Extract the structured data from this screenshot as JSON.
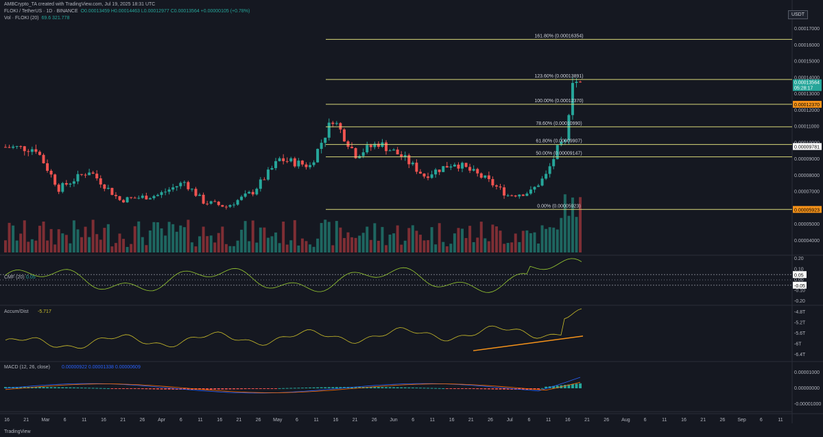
{
  "header": {
    "attribution": "AMBCrypto_TA created with TradingView.com, Jul 19, 2025 18:31 UTC",
    "symbol": "FLOKI / TetherUS · 1D · BINANCE",
    "ohlc": "O0.00013459 H0.00014463 L0.00012977 C0.00013564 +0.00000105 (+0.78%)",
    "volume": "Vol · FLOKI (20)",
    "volume_value": "69.6  321.778"
  },
  "currency_button": "USDT",
  "price_axis": [
    "0.00017000",
    "0.00016000",
    "0.00015000",
    "0.00014000",
    "0.00013000",
    "0.00012000",
    "0.00011000",
    "0.00010000",
    "0.00009000",
    "0.00008000",
    "0.00007000",
    "0.00006000",
    "0.00005000",
    "0.00004000"
  ],
  "current_price": "0.00013564",
  "countdown": "05:28:17",
  "price_tags": [
    {
      "text": "0.00012370",
      "color": "#f7931a"
    },
    {
      "text": "0.00009781",
      "color": "#ffffff"
    },
    {
      "text": "0.00005923",
      "color": "#f7931a"
    }
  ],
  "fib_levels": [
    {
      "label": "161.80% (0.00016354)",
      "price": 0.00016354
    },
    {
      "label": "123.60% (0.00013891)",
      "price": 0.00013891
    },
    {
      "label": "100.00% (0.00012370)",
      "price": 0.0001237
    },
    {
      "label": "78.60% (0.00010990)",
      "price": 0.0001099
    },
    {
      "label": "61.80% (0.00009907)",
      "price": 9.907e-05
    },
    {
      "label": "50.00% (0.00009147)",
      "price": 9.147e-05
    },
    {
      "label": "0.00% (0.00005923)",
      "price": 5.923e-05
    }
  ],
  "cmf": {
    "title": "CMF (20)",
    "value": "0.05",
    "axis": [
      "0.20",
      "0.10",
      "0.00",
      "-0.10",
      "-0.20"
    ],
    "tags": [
      "0.05",
      "-0.05"
    ]
  },
  "accum": {
    "title": "Accum/Dist",
    "value": "-5.717",
    "axis": [
      "-4.8T",
      "-5.2T",
      "-5.6T",
      "-6T",
      "-6.4T"
    ]
  },
  "macd": {
    "title": "MACD (12, 26, close)",
    "values": "0.00000922  0.00001338  0.00000609",
    "axis": [
      "0.00001000",
      "0.00000000",
      "-0.00001000"
    ]
  },
  "time_axis": [
    "16",
    "21",
    "Mar",
    "6",
    "11",
    "16",
    "21",
    "26",
    "Apr",
    "6",
    "11",
    "16",
    "21",
    "26",
    "May",
    "6",
    "11",
    "16",
    "21",
    "26",
    "Jun",
    "6",
    "11",
    "16",
    "21",
    "26",
    "Jul",
    "6",
    "11",
    "16",
    "21",
    "26",
    "Aug",
    "6",
    "11",
    "16",
    "21",
    "26",
    "Sep",
    "6",
    "11"
  ],
  "footer": "TradingView",
  "colors": {
    "up": "#26a69a",
    "down": "#ef5350",
    "fib": "#d9d97a",
    "orange": "#f7931a",
    "cmf": "#9acd32",
    "accum": "#cdbf2a"
  }
}
